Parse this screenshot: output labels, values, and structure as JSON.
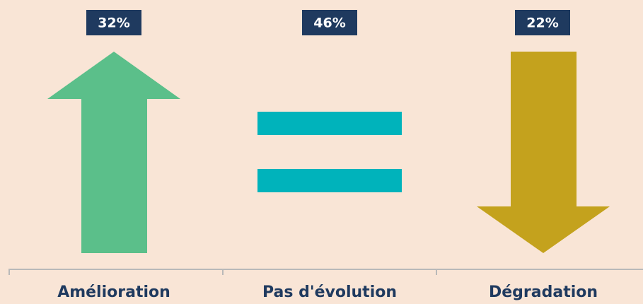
{
  "items": [
    {
      "value": "32%",
      "label": "Amélioration"
    },
    {
      "value": "46%",
      "label": "Pas d'évolution"
    },
    {
      "value": "22%",
      "label": "Dégradation"
    }
  ]
}
